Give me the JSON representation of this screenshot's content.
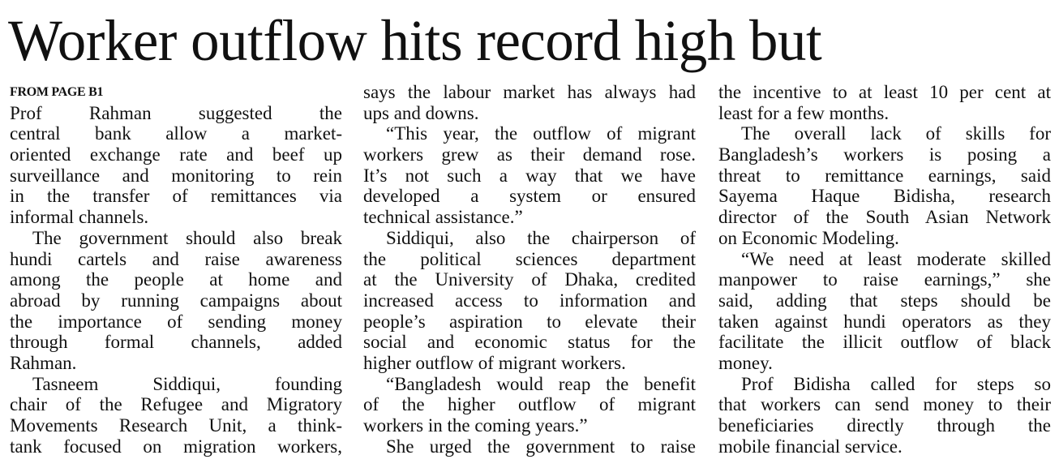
{
  "headline": "Worker outflow hits record high but",
  "jump_label": "FROM PAGE B1",
  "columns": [
    {
      "paragraphs": [
        {
          "lines": [
            "Prof Rahman suggested the",
            "central bank allow a market-",
            "oriented exchange rate and beef up",
            "surveillance and monitoring to rein",
            "in the transfer of remittances via",
            "informal channels."
          ]
        },
        {
          "lines": [
            "The government should also break",
            "hundi cartels and raise awareness",
            "among the people at home and",
            "abroad by running campaigns about",
            "the importance of sending money",
            "through formal channels, added",
            "Rahman."
          ]
        },
        {
          "lines": [
            "Tasneem Siddiqui, founding",
            "chair of the Refugee and Migratory",
            "Movements Research Unit, a think-",
            "tank focused on migration workers,"
          ]
        }
      ]
    },
    {
      "paragraphs": [
        {
          "lines": [
            "says the labour market has always had",
            "ups and downs."
          ]
        },
        {
          "lines": [
            "“This year, the outflow of migrant",
            "workers grew as their demand rose.",
            "It’s not such a way that we have",
            "developed a system or ensured",
            "technical assistance.”"
          ]
        },
        {
          "lines": [
            "Siddiqui, also the chairperson of",
            "the political sciences department",
            "at the University of Dhaka, credited",
            "increased access to information and",
            "people’s aspiration to elevate their",
            "social and economic status for the",
            "higher outflow of migrant workers."
          ]
        },
        {
          "lines": [
            "“Bangladesh would reap the benefit",
            "of the higher outflow of migrant",
            "workers in the coming years.”"
          ]
        },
        {
          "lines": [
            "She urged the government to raise"
          ]
        }
      ]
    },
    {
      "paragraphs": [
        {
          "lines": [
            "the incentive to at least 10 per cent at",
            "least for a few months."
          ]
        },
        {
          "lines": [
            "The overall lack of skills for",
            "Bangladesh’s workers is posing a",
            "threat to remittance earnings, said",
            "Sayema Haque Bidisha, research",
            "director of the South Asian Network",
            "on Economic Modeling."
          ]
        },
        {
          "lines": [
            "“We need at least moderate skilled",
            "manpower to raise earnings,” she",
            "said, adding that steps should be",
            "taken against hundi operators as they",
            "facilitate the illicit outflow of black",
            "money."
          ]
        },
        {
          "lines": [
            "Prof Bidisha called for steps so",
            "that workers can send money to their",
            "beneficiaries directly through the",
            "mobile financial service."
          ]
        }
      ]
    }
  ]
}
